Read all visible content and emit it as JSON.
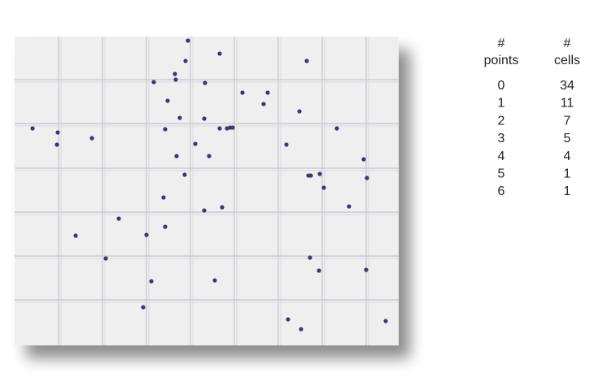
{
  "table": {
    "headers": [
      [
        "#",
        "points"
      ],
      [
        "#",
        "cells"
      ]
    ],
    "rows": [
      [
        "0",
        "34"
      ],
      [
        "1",
        "11"
      ],
      [
        "2",
        "7"
      ],
      [
        "3",
        "5"
      ],
      [
        "4",
        "4"
      ],
      [
        "5",
        "1"
      ],
      [
        "6",
        "1"
      ]
    ]
  }
}
